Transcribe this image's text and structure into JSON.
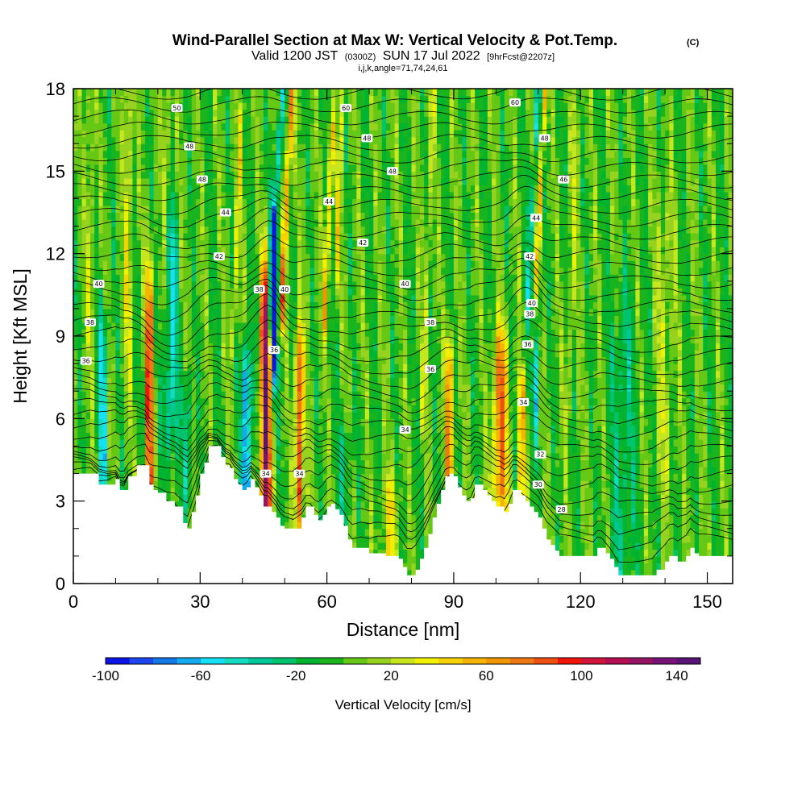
{
  "chart_data": {
    "type": "heatmap",
    "title": {
      "main": "Wind-Parallel Section at Max W: Vertical Velocity & Pot.Temp.",
      "copyright": "(C)",
      "valid_a": "Valid 1200 JST",
      "valid_b": "(0300Z)",
      "valid_c": "SUN 17 Jul 2022",
      "valid_d": "[9hrFcst@2207z]",
      "section_info": "i,j,k,angle=71,74,24,61"
    },
    "xlabel": "Distance [nm]",
    "ylabel": "Height [Kft MSL]",
    "xlim": [
      0,
      156
    ],
    "ylim": [
      0,
      18
    ],
    "x_ticks": [
      0,
      30,
      60,
      90,
      120,
      150
    ],
    "x_tick_labels": [
      "0",
      "30",
      "60",
      "90",
      "120",
      "150"
    ],
    "y_ticks": [
      0,
      3,
      6,
      9,
      12,
      15,
      18
    ],
    "y_tick_labels": [
      "0",
      "3",
      "6",
      "9",
      "12",
      "15",
      "18"
    ],
    "colorbar": {
      "label": "Vertical Velocity [cm/s]",
      "range": [
        -100,
        150
      ],
      "step": 10,
      "tick_values": [
        -100,
        -60,
        -20,
        20,
        60,
        100,
        140
      ],
      "tick_labels": [
        "-100",
        "-60",
        "-20",
        "20",
        "60",
        "100",
        "140"
      ],
      "colors": [
        "#0a14e6",
        "#1e46f0",
        "#1478e6",
        "#14aaf0",
        "#14e1f5",
        "#14dcc3",
        "#00c89b",
        "#00c36e",
        "#00b432",
        "#19b41e",
        "#64c814",
        "#96d21e",
        "#c8e61e",
        "#f0f000",
        "#f5d200",
        "#f5b400",
        "#f09600",
        "#f07814",
        "#f05014",
        "#f0140a",
        "#d2143c",
        "#b40f50",
        "#961464",
        "#781478",
        "#5a1478"
      ]
    },
    "terrain_height_kft": [
      [
        0,
        4.0
      ],
      [
        2,
        4.0
      ],
      [
        4,
        4.0
      ],
      [
        6,
        3.6
      ],
      [
        8,
        3.6
      ],
      [
        10,
        3.8
      ],
      [
        11,
        3.4
      ],
      [
        12,
        3.4
      ],
      [
        13,
        3.9
      ],
      [
        15,
        4.3
      ],
      [
        16,
        4.3
      ],
      [
        17,
        4.3
      ],
      [
        18,
        3.6
      ],
      [
        19,
        3.4
      ],
      [
        20,
        3.3
      ],
      [
        22,
        3.0
      ],
      [
        24,
        2.8
      ],
      [
        26,
        2.2
      ],
      [
        27,
        2.0
      ],
      [
        28,
        2.6
      ],
      [
        29,
        3.2
      ],
      [
        30,
        4.0
      ],
      [
        31,
        4.4
      ],
      [
        32,
        5.0
      ],
      [
        33,
        5.0
      ],
      [
        34,
        5.0
      ],
      [
        35,
        4.6
      ],
      [
        36,
        4.3
      ],
      [
        37,
        4.2
      ],
      [
        38,
        3.8
      ],
      [
        39,
        3.6
      ],
      [
        40,
        3.4
      ],
      [
        41,
        3.5
      ],
      [
        42,
        3.8
      ],
      [
        43,
        3.5
      ],
      [
        44,
        3.2
      ],
      [
        45,
        2.8
      ],
      [
        46,
        2.8
      ],
      [
        47,
        2.6
      ],
      [
        48,
        2.4
      ],
      [
        49,
        2.1
      ],
      [
        50,
        2.0
      ],
      [
        52,
        2.0
      ],
      [
        54,
        2.4
      ],
      [
        55,
        2.8
      ],
      [
        56,
        2.8
      ],
      [
        57,
        2.5
      ],
      [
        58,
        2.3
      ],
      [
        59,
        2.5
      ],
      [
        60,
        2.8
      ],
      [
        61,
        2.9
      ],
      [
        62,
        2.7
      ],
      [
        63,
        2.5
      ],
      [
        64,
        2.1
      ],
      [
        65,
        1.6
      ],
      [
        66,
        1.3
      ],
      [
        68,
        1.3
      ],
      [
        70,
        1.1
      ],
      [
        72,
        1.1
      ],
      [
        74,
        1.0
      ],
      [
        76,
        1.0
      ],
      [
        77,
        0.9
      ],
      [
        78,
        0.6
      ],
      [
        79,
        0.3
      ],
      [
        80,
        0.3
      ],
      [
        81,
        0.5
      ],
      [
        82,
        0.9
      ],
      [
        83,
        1.3
      ],
      [
        84,
        1.8
      ],
      [
        85,
        2.4
      ],
      [
        86,
        2.9
      ],
      [
        87,
        3.4
      ],
      [
        88,
        3.9
      ],
      [
        89,
        4.0
      ],
      [
        90,
        3.9
      ],
      [
        91,
        3.5
      ],
      [
        92,
        3.2
      ],
      [
        93,
        3.0
      ],
      [
        94,
        3.1
      ],
      [
        95,
        3.6
      ],
      [
        96,
        3.6
      ],
      [
        97,
        3.4
      ],
      [
        98,
        3.2
      ],
      [
        99,
        3.0
      ],
      [
        100,
        2.8
      ],
      [
        101,
        2.8
      ],
      [
        102,
        2.6
      ],
      [
        103,
        2.9
      ],
      [
        104,
        3.4
      ],
      [
        105,
        3.4
      ],
      [
        106,
        3.2
      ],
      [
        107,
        3.0
      ],
      [
        108,
        2.8
      ],
      [
        109,
        2.6
      ],
      [
        110,
        2.4
      ],
      [
        111,
        2.0
      ],
      [
        112,
        1.6
      ],
      [
        113,
        1.4
      ],
      [
        114,
        1.2
      ],
      [
        115,
        1.0
      ],
      [
        116,
        1.0
      ],
      [
        118,
        1.0
      ],
      [
        120,
        1.0
      ],
      [
        122,
        1.0
      ],
      [
        123,
        1.0
      ],
      [
        124,
        1.3
      ],
      [
        125,
        1.3
      ],
      [
        126,
        1.1
      ],
      [
        127,
        0.9
      ],
      [
        128,
        0.6
      ],
      [
        129,
        0.3
      ],
      [
        131,
        0.3
      ],
      [
        134,
        0.3
      ],
      [
        137,
        0.3
      ],
      [
        138,
        0.5
      ],
      [
        140,
        0.8
      ],
      [
        141,
        1.0
      ],
      [
        142,
        1.0
      ],
      [
        143,
        0.8
      ],
      [
        145,
        1.0
      ],
      [
        146,
        1.3
      ],
      [
        147,
        1.1
      ],
      [
        148,
        1.0
      ],
      [
        152,
        1.0
      ],
      [
        156,
        1.0
      ]
    ],
    "vv_features": [
      {
        "x": 18,
        "ybot": 3.8,
        "ytop": 9.2,
        "amp": 95,
        "wx": 0.9,
        "wy": 2.6
      },
      {
        "x": 7,
        "ybot": 4.5,
        "ytop": 8.5,
        "amp": -55,
        "wx": 0.9,
        "wy": 2.0
      },
      {
        "x": 23,
        "ybot": 6.5,
        "ytop": 11.5,
        "amp": -50,
        "wx": 1.6,
        "wy": 2.3
      },
      {
        "x": 27,
        "ybot": 4.0,
        "ytop": 6.5,
        "amp": -35,
        "wx": 1.0,
        "wy": 1.4
      },
      {
        "x": 41,
        "ybot": 3.8,
        "ytop": 7.2,
        "amp": -75,
        "wx": 1.1,
        "wy": 1.8
      },
      {
        "x": 45.5,
        "ybot": 3.0,
        "ytop": 9.0,
        "amp": 135,
        "wx": 1.2,
        "wy": 2.8
      },
      {
        "x": 47.5,
        "ybot": 8.5,
        "ytop": 12.0,
        "amp": -95,
        "wx": 0.8,
        "wy": 1.6
      },
      {
        "x": 53.5,
        "ybot": 3.5,
        "ytop": 7.5,
        "amp": 95,
        "wx": 0.9,
        "wy": 2.0
      },
      {
        "x": 89,
        "ybot": 4.5,
        "ytop": 7.5,
        "amp": 75,
        "wx": 0.9,
        "wy": 1.6
      },
      {
        "x": 101,
        "ybot": 3.8,
        "ytop": 7.6,
        "amp": 75,
        "wx": 1.7,
        "wy": 1.9
      },
      {
        "x": 106,
        "ybot": 3.2,
        "ytop": 6.5,
        "amp": 65,
        "wx": 0.7,
        "wy": 1.7
      },
      {
        "x": 109.5,
        "ybot": 6.5,
        "ytop": 9.5,
        "amp": -45,
        "wx": 0.8,
        "wy": 1.5
      },
      {
        "x": 64,
        "ybot": 2.3,
        "ytop": 4.8,
        "amp": -25,
        "wx": 1.5,
        "wy": 1.2
      },
      {
        "x": 75,
        "ybot": 1.2,
        "ytop": 3.0,
        "amp": 30,
        "wx": 2.0,
        "wy": 1.0
      },
      {
        "x": 130,
        "ybot": 2.0,
        "ytop": 8.0,
        "amp": -25,
        "wx": 3.0,
        "wy": 3.0
      },
      {
        "x": 4,
        "ybot": 10.5,
        "ytop": 17.5,
        "amp": 25,
        "wx": 0.8,
        "wy": 3.0
      },
      {
        "x": 13,
        "ybot": 10.0,
        "ytop": 17.5,
        "amp": 35,
        "wx": 0.8,
        "wy": 3.0
      },
      {
        "x": 22,
        "ybot": 11.0,
        "ytop": 17.8,
        "amp": 30,
        "wx": 0.7,
        "wy": 3.0
      },
      {
        "x": 140,
        "ybot": 6.0,
        "ytop": 12.0,
        "amp": 20,
        "wx": 2.0,
        "wy": 3.0
      }
    ],
    "vv_bands": [
      {
        "x0": 46.5,
        "y0": 10.0,
        "slope": 0.35,
        "amp": -60,
        "wx": 0.55,
        "ymin": 9.0,
        "ymax": 18.0
      },
      {
        "x0": 49.5,
        "y0": 10.5,
        "slope": 0.3,
        "amp": 75,
        "wx": 0.6,
        "ymin": 9.5,
        "ymax": 18.0
      },
      {
        "x0": 60.0,
        "y0": 12.0,
        "slope": 0.25,
        "amp": 45,
        "wx": 0.7,
        "ymin": 9.5,
        "ymax": 16.5
      },
      {
        "x0": 107.8,
        "y0": 11.5,
        "slope": 0.32,
        "amp": -55,
        "wx": 0.45,
        "ymin": 8.5,
        "ymax": 18.0
      },
      {
        "x0": 109.8,
        "y0": 12.0,
        "slope": 0.3,
        "amp": 50,
        "wx": 0.55,
        "ymin": 9.0,
        "ymax": 18.0
      },
      {
        "x0": 63.0,
        "y0": 15.0,
        "slope": 0.2,
        "amp": 30,
        "wx": 0.6,
        "ymin": 11.0,
        "ymax": 18.0
      },
      {
        "x0": 38.5,
        "y0": 12.0,
        "slope": 0.25,
        "amp": 30,
        "wx": 0.7,
        "ymin": 9.0,
        "ymax": 17.0
      },
      {
        "x0": 118.0,
        "y0": 12.0,
        "slope": 0.2,
        "amp": 20,
        "wx": 0.8,
        "ymin": 6.0,
        "ymax": 18.0
      },
      {
        "x0": 84.0,
        "y0": 13.0,
        "slope": 0.18,
        "amp": 20,
        "wx": 0.8,
        "ymin": 6.0,
        "ymax": 18.0
      }
    ],
    "theta_contour_labels": [
      {
        "text": "50",
        "x": 24.5,
        "y": 17.3
      },
      {
        "text": "60",
        "x": 64.5,
        "y": 17.3
      },
      {
        "text": "60",
        "x": 104.5,
        "y": 17.5
      },
      {
        "text": "48",
        "x": 27.5,
        "y": 15.9
      },
      {
        "text": "48",
        "x": 69.5,
        "y": 16.2
      },
      {
        "text": "48",
        "x": 111.5,
        "y": 16.2
      },
      {
        "text": "48",
        "x": 30.5,
        "y": 14.7
      },
      {
        "text": "48",
        "x": 75.5,
        "y": 15.0
      },
      {
        "text": "46",
        "x": 116.0,
        "y": 14.7
      },
      {
        "text": "44",
        "x": 36.0,
        "y": 13.5
      },
      {
        "text": "44",
        "x": 60.5,
        "y": 13.9
      },
      {
        "text": "44",
        "x": 109.5,
        "y": 13.3
      },
      {
        "text": "42",
        "x": 34.5,
        "y": 11.9
      },
      {
        "text": "42",
        "x": 68.5,
        "y": 12.4
      },
      {
        "text": "42",
        "x": 108.0,
        "y": 11.9
      },
      {
        "text": "40",
        "x": 6.0,
        "y": 10.9
      },
      {
        "text": "40",
        "x": 78.5,
        "y": 10.9
      },
      {
        "text": "40",
        "x": 108.5,
        "y": 10.2
      },
      {
        "text": "40",
        "x": 50.0,
        "y": 10.7
      },
      {
        "text": "38",
        "x": 44.0,
        "y": 10.7
      },
      {
        "text": "38",
        "x": 4.0,
        "y": 9.5
      },
      {
        "text": "38",
        "x": 84.5,
        "y": 9.5
      },
      {
        "text": "38",
        "x": 108.0,
        "y": 9.8
      },
      {
        "text": "36",
        "x": 47.5,
        "y": 8.5
      },
      {
        "text": "36",
        "x": 3.0,
        "y": 8.1
      },
      {
        "text": "36",
        "x": 84.5,
        "y": 7.8
      },
      {
        "text": "36",
        "x": 107.5,
        "y": 8.7
      },
      {
        "text": "34",
        "x": 106.5,
        "y": 6.6
      },
      {
        "text": "34",
        "x": 78.5,
        "y": 5.6
      },
      {
        "text": "34",
        "x": 45.5,
        "y": 4.0
      },
      {
        "text": "34",
        "x": 53.5,
        "y": 4.0
      },
      {
        "text": "32",
        "x": 110.5,
        "y": 4.7
      },
      {
        "text": "30",
        "x": 110.0,
        "y": 3.6
      },
      {
        "text": "28",
        "x": 115.5,
        "y": 2.7
      }
    ]
  }
}
